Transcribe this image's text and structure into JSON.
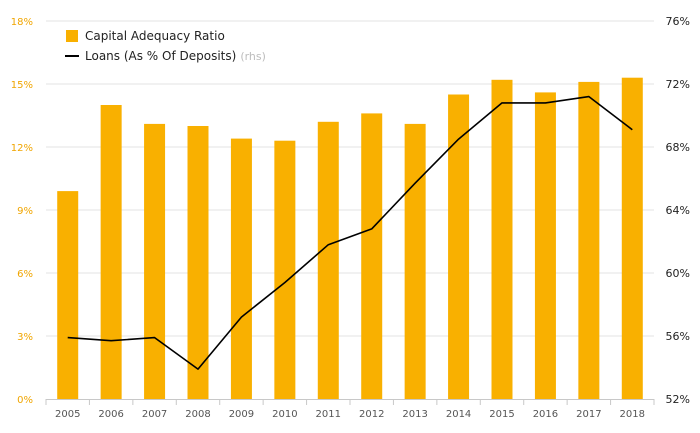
{
  "chart_data": {
    "type": "bar",
    "categories": [
      "2005",
      "2006",
      "2007",
      "2008",
      "2009",
      "2010",
      "2011",
      "2012",
      "2013",
      "2014",
      "2015",
      "2016",
      "2017",
      "2018"
    ],
    "series": [
      {
        "name": "Capital Adequacy Ratio",
        "type": "bar",
        "axis": "left",
        "color": "#f9b000",
        "values": [
          9.9,
          14.0,
          13.1,
          13.0,
          12.4,
          12.3,
          13.2,
          13.6,
          13.1,
          14.5,
          15.2,
          14.6,
          15.1,
          15.3
        ]
      },
      {
        "name": "Loans (As % Of Deposits)",
        "note": "(rhs)",
        "type": "line",
        "axis": "right",
        "color": "#000000",
        "values": [
          55.9,
          55.7,
          55.9,
          53.9,
          57.2,
          59.4,
          61.8,
          62.8,
          65.7,
          68.5,
          70.8,
          70.8,
          71.2,
          69.1
        ]
      }
    ],
    "y_left": {
      "ylim": [
        0,
        18
      ],
      "ticks": [
        "0%",
        "3%",
        "6%",
        "9%",
        "12%",
        "15%",
        "18%"
      ],
      "tick_color": "#f0a500"
    },
    "y_right": {
      "ylim": [
        52,
        76
      ],
      "ticks": [
        "52%",
        "56%",
        "60%",
        "64%",
        "68%",
        "72%",
        "76%"
      ]
    },
    "grid": true,
    "legend": "top-left"
  }
}
